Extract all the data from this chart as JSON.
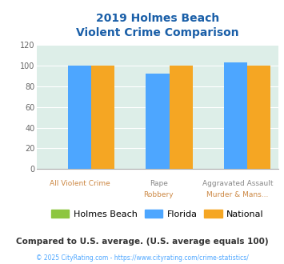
{
  "title_line1": "2019 Holmes Beach",
  "title_line2": "Violent Crime Comparison",
  "groups": [
    {
      "top_label": "",
      "bot_label": "All Violent Crime",
      "holmes_beach": 0,
      "florida": 100,
      "national": 100
    },
    {
      "top_label": "Rape",
      "bot_label": "Robbery",
      "holmes_beach": 0,
      "florida": 92,
      "national": 100
    },
    {
      "top_label": "Aggravated Assault",
      "bot_label": "Murder & Mans...",
      "holmes_beach": 0,
      "florida": 103,
      "national": 100
    }
  ],
  "color_holmes_beach": "#8dc63f",
  "color_florida": "#4da6ff",
  "color_national": "#f5a623",
  "title_color": "#1a5fa8",
  "axis_label_color_top": "#888888",
  "axis_label_color_bot": "#cc8844",
  "background_color": "#ddeee8",
  "ylim": [
    0,
    120
  ],
  "yticks": [
    0,
    20,
    40,
    60,
    80,
    100,
    120
  ],
  "footer_text": "Compared to U.S. average. (U.S. average equals 100)",
  "footer_color": "#333333",
  "copyright_text": "© 2025 CityRating.com - https://www.cityrating.com/crime-statistics/",
  "copyright_color": "#4da6ff",
  "legend_labels": [
    "Holmes Beach",
    "Florida",
    "National"
  ]
}
